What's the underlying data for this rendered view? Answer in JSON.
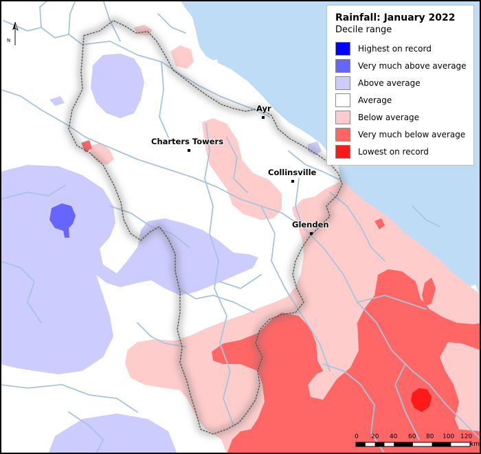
{
  "map": {
    "title": "Rainfall: January 2022",
    "subtitle": "Decile range",
    "colors": {
      "sea": "#bedcf6",
      "land": "#ffffff",
      "river": "#a7c4dd",
      "region_border": "#555555"
    },
    "legend": [
      {
        "label": "Highest on record",
        "color": "#0000ff"
      },
      {
        "label": "Very much above average",
        "color": "#6666ff"
      },
      {
        "label": "Above average",
        "color": "#ccccff"
      },
      {
        "label": "Average",
        "color": "#ffffff"
      },
      {
        "label": "Below average",
        "color": "#ffcccc"
      },
      {
        "label": "Very much below average",
        "color": "#ff6666"
      },
      {
        "label": "Lowest on record",
        "color": "#ff1a1a"
      }
    ],
    "towns": [
      {
        "name": "Ayr"
      },
      {
        "name": "Charters Towers"
      },
      {
        "name": "Collinsville"
      },
      {
        "name": "Glenden"
      }
    ],
    "north_label": "N",
    "scale": {
      "ticks": [
        "0",
        "20",
        "40",
        "60",
        "80",
        "100",
        "120"
      ],
      "unit": "km"
    }
  }
}
